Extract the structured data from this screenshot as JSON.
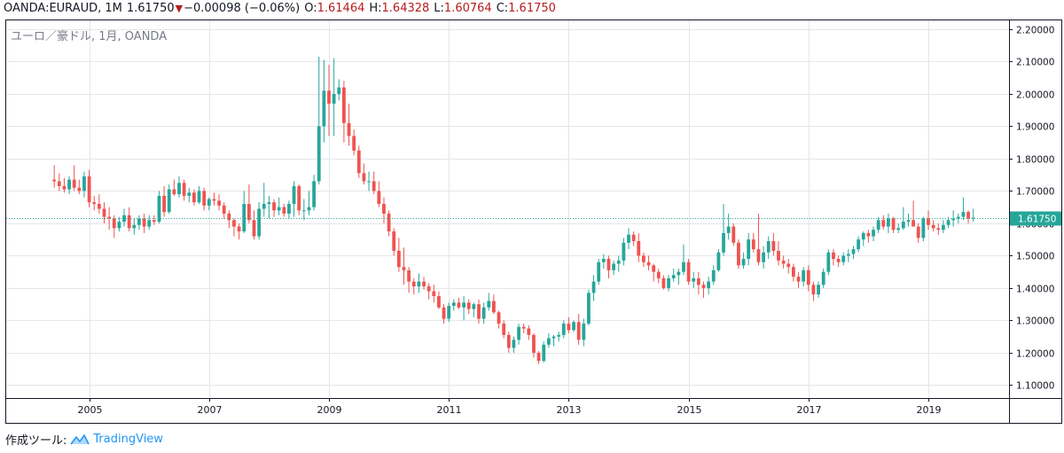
{
  "header": {
    "symbol": "OANDA:EURAUD, 1M",
    "price": "1.61750",
    "change": "−0.00098 (−0.06%)",
    "open_label": "O:",
    "open": "1.61464",
    "high_label": "H:",
    "high": "1.64328",
    "low_label": "L:",
    "low": "1.60764",
    "close_label": "C:",
    "close": "1.61750"
  },
  "subtitle": "ユーロ／豪ドル, 1月, OANDA",
  "footer": {
    "label": "作成ツール:",
    "brand": "TradingView",
    "icon": "tradingview-logo-icon"
  },
  "colors": {
    "up": "#26a69a",
    "down": "#ef5350",
    "grid": "#e6e6ea",
    "price_line": "#26a69a",
    "axis_text": "#131722"
  },
  "chart_data": {
    "type": "candlestick",
    "symbol": "EURAUD",
    "interval": "1M",
    "ylim": [
      1.06,
      2.23
    ],
    "y_ticks": [
      "1.10000",
      "1.20000",
      "1.30000",
      "1.40000",
      "1.50000",
      "1.60000",
      "1.70000",
      "1.80000",
      "1.90000",
      "2.00000",
      "2.10000",
      "2.20000"
    ],
    "x_ticks": [
      "2005",
      "2007",
      "2009",
      "2011",
      "2013",
      "2015",
      "2017",
      "2019"
    ],
    "last_price_label": "1.61750",
    "last_price": 1.6175,
    "grid": true,
    "candles": [
      [
        "2004-06",
        1.735,
        1.78,
        1.71,
        1.73
      ],
      [
        "2004-07",
        1.73,
        1.755,
        1.7,
        1.715
      ],
      [
        "2004-08",
        1.715,
        1.74,
        1.695,
        1.705
      ],
      [
        "2004-09",
        1.705,
        1.745,
        1.69,
        1.735
      ],
      [
        "2004-10",
        1.735,
        1.78,
        1.7,
        1.71
      ],
      [
        "2004-11",
        1.71,
        1.735,
        1.69,
        1.7
      ],
      [
        "2004-12",
        1.7,
        1.76,
        1.68,
        1.745
      ],
      [
        "2005-01",
        1.745,
        1.765,
        1.65,
        1.665
      ],
      [
        "2005-02",
        1.665,
        1.685,
        1.64,
        1.66
      ],
      [
        "2005-03",
        1.66,
        1.69,
        1.63,
        1.645
      ],
      [
        "2005-04",
        1.645,
        1.665,
        1.6,
        1.62
      ],
      [
        "2005-05",
        1.62,
        1.65,
        1.58,
        1.615
      ],
      [
        "2005-06",
        1.615,
        1.625,
        1.555,
        1.585
      ],
      [
        "2005-07",
        1.585,
        1.62,
        1.575,
        1.605
      ],
      [
        "2005-08",
        1.605,
        1.645,
        1.59,
        1.625
      ],
      [
        "2005-09",
        1.625,
        1.65,
        1.575,
        1.585
      ],
      [
        "2005-10",
        1.585,
        1.615,
        1.565,
        1.595
      ],
      [
        "2005-11",
        1.595,
        1.625,
        1.58,
        1.615
      ],
      [
        "2005-12",
        1.615,
        1.63,
        1.57,
        1.59
      ],
      [
        "2006-01",
        1.59,
        1.625,
        1.58,
        1.61
      ],
      [
        "2006-02",
        1.61,
        1.625,
        1.595,
        1.605
      ],
      [
        "2006-03",
        1.605,
        1.7,
        1.6,
        1.685
      ],
      [
        "2006-04",
        1.685,
        1.715,
        1.62,
        1.635
      ],
      [
        "2006-05",
        1.635,
        1.72,
        1.63,
        1.705
      ],
      [
        "2006-06",
        1.705,
        1.735,
        1.685,
        1.69
      ],
      [
        "2006-07",
        1.69,
        1.745,
        1.68,
        1.725
      ],
      [
        "2006-08",
        1.725,
        1.735,
        1.67,
        1.685
      ],
      [
        "2006-09",
        1.685,
        1.71,
        1.665,
        1.695
      ],
      [
        "2006-10",
        1.695,
        1.705,
        1.655,
        1.665
      ],
      [
        "2006-11",
        1.665,
        1.715,
        1.66,
        1.7
      ],
      [
        "2006-12",
        1.7,
        1.71,
        1.64,
        1.655
      ],
      [
        "2007-01",
        1.655,
        1.68,
        1.64,
        1.675
      ],
      [
        "2007-02",
        1.675,
        1.695,
        1.655,
        1.67
      ],
      [
        "2007-03",
        1.67,
        1.69,
        1.64,
        1.655
      ],
      [
        "2007-04",
        1.655,
        1.665,
        1.615,
        1.63
      ],
      [
        "2007-05",
        1.63,
        1.64,
        1.585,
        1.61
      ],
      [
        "2007-06",
        1.61,
        1.615,
        1.56,
        1.59
      ],
      [
        "2007-07",
        1.59,
        1.6,
        1.55,
        1.575
      ],
      [
        "2007-08",
        1.575,
        1.7,
        1.57,
        1.66
      ],
      [
        "2007-09",
        1.66,
        1.72,
        1.6,
        1.61
      ],
      [
        "2007-10",
        1.61,
        1.64,
        1.55,
        1.56
      ],
      [
        "2007-11",
        1.56,
        1.665,
        1.55,
        1.645
      ],
      [
        "2007-12",
        1.645,
        1.725,
        1.62,
        1.66
      ],
      [
        "2008-01",
        1.66,
        1.685,
        1.615,
        1.665
      ],
      [
        "2008-02",
        1.665,
        1.675,
        1.62,
        1.64
      ],
      [
        "2008-03",
        1.64,
        1.68,
        1.625,
        1.65
      ],
      [
        "2008-04",
        1.65,
        1.66,
        1.62,
        1.63
      ],
      [
        "2008-05",
        1.63,
        1.67,
        1.615,
        1.66
      ],
      [
        "2008-06",
        1.66,
        1.73,
        1.62,
        1.715
      ],
      [
        "2008-07",
        1.715,
        1.72,
        1.625,
        1.64
      ],
      [
        "2008-08",
        1.64,
        1.675,
        1.61,
        1.64
      ],
      [
        "2008-09",
        1.64,
        1.7,
        1.625,
        1.65
      ],
      [
        "2008-10",
        1.65,
        1.75,
        1.64,
        1.73
      ],
      [
        "2008-11",
        1.73,
        2.115,
        1.72,
        1.9
      ],
      [
        "2008-12",
        1.9,
        2.105,
        1.85,
        2.01
      ],
      [
        "2009-01",
        2.01,
        2.09,
        1.87,
        1.97
      ],
      [
        "2009-02",
        1.97,
        2.11,
        1.87,
        2.0
      ],
      [
        "2009-03",
        2.0,
        2.045,
        1.98,
        2.02
      ],
      [
        "2009-04",
        2.02,
        2.04,
        1.85,
        1.91
      ],
      [
        "2009-05",
        1.91,
        1.97,
        1.84,
        1.87
      ],
      [
        "2009-06",
        1.87,
        1.89,
        1.81,
        1.825
      ],
      [
        "2009-07",
        1.825,
        1.84,
        1.74,
        1.755
      ],
      [
        "2009-08",
        1.755,
        1.785,
        1.72,
        1.73
      ],
      [
        "2009-09",
        1.73,
        1.76,
        1.7,
        1.73
      ],
      [
        "2009-10",
        1.73,
        1.76,
        1.69,
        1.7
      ],
      [
        "2009-11",
        1.7,
        1.73,
        1.65,
        1.66
      ],
      [
        "2009-12",
        1.66,
        1.68,
        1.6,
        1.63
      ],
      [
        "2010-01",
        1.63,
        1.64,
        1.56,
        1.575
      ],
      [
        "2010-02",
        1.575,
        1.585,
        1.5,
        1.515
      ],
      [
        "2010-03",
        1.515,
        1.555,
        1.45,
        1.465
      ],
      [
        "2010-04",
        1.465,
        1.525,
        1.41,
        1.455
      ],
      [
        "2010-05",
        1.455,
        1.465,
        1.385,
        1.42
      ],
      [
        "2010-06",
        1.42,
        1.43,
        1.38,
        1.405
      ],
      [
        "2010-07",
        1.405,
        1.445,
        1.385,
        1.42
      ],
      [
        "2010-08",
        1.42,
        1.435,
        1.395,
        1.405
      ],
      [
        "2010-09",
        1.405,
        1.415,
        1.365,
        1.39
      ],
      [
        "2010-10",
        1.39,
        1.41,
        1.355,
        1.375
      ],
      [
        "2010-11",
        1.375,
        1.39,
        1.335,
        1.34
      ],
      [
        "2010-12",
        1.34,
        1.35,
        1.29,
        1.305
      ],
      [
        "2011-01",
        1.305,
        1.355,
        1.295,
        1.345
      ],
      [
        "2011-02",
        1.345,
        1.365,
        1.33,
        1.355
      ],
      [
        "2011-03",
        1.355,
        1.37,
        1.335,
        1.34
      ],
      [
        "2011-04",
        1.34,
        1.375,
        1.3,
        1.355
      ],
      [
        "2011-05",
        1.355,
        1.365,
        1.32,
        1.335
      ],
      [
        "2011-06",
        1.335,
        1.355,
        1.31,
        1.35
      ],
      [
        "2011-07",
        1.35,
        1.365,
        1.29,
        1.305
      ],
      [
        "2011-08",
        1.305,
        1.355,
        1.29,
        1.34
      ],
      [
        "2011-09",
        1.34,
        1.385,
        1.33,
        1.36
      ],
      [
        "2011-10",
        1.36,
        1.38,
        1.32,
        1.325
      ],
      [
        "2011-11",
        1.325,
        1.33,
        1.275,
        1.29
      ],
      [
        "2011-12",
        1.29,
        1.3,
        1.245,
        1.255
      ],
      [
        "2012-01",
        1.255,
        1.265,
        1.2,
        1.215
      ],
      [
        "2012-02",
        1.215,
        1.25,
        1.2,
        1.24
      ],
      [
        "2012-03",
        1.24,
        1.29,
        1.225,
        1.28
      ],
      [
        "2012-04",
        1.28,
        1.29,
        1.26,
        1.275
      ],
      [
        "2012-05",
        1.275,
        1.285,
        1.24,
        1.255
      ],
      [
        "2012-06",
        1.255,
        1.26,
        1.185,
        1.2
      ],
      [
        "2012-07",
        1.2,
        1.205,
        1.165,
        1.175
      ],
      [
        "2012-08",
        1.175,
        1.235,
        1.17,
        1.225
      ],
      [
        "2012-09",
        1.225,
        1.26,
        1.215,
        1.245
      ],
      [
        "2012-10",
        1.245,
        1.255,
        1.22,
        1.25
      ],
      [
        "2012-11",
        1.25,
        1.265,
        1.235,
        1.255
      ],
      [
        "2012-12",
        1.255,
        1.3,
        1.245,
        1.29
      ],
      [
        "2013-01",
        1.29,
        1.31,
        1.26,
        1.27
      ],
      [
        "2013-02",
        1.27,
        1.3,
        1.265,
        1.295
      ],
      [
        "2013-03",
        1.295,
        1.32,
        1.225,
        1.24
      ],
      [
        "2013-04",
        1.24,
        1.305,
        1.22,
        1.29
      ],
      [
        "2013-05",
        1.29,
        1.395,
        1.285,
        1.385
      ],
      [
        "2013-06",
        1.385,
        1.44,
        1.36,
        1.42
      ],
      [
        "2013-07",
        1.42,
        1.49,
        1.41,
        1.48
      ],
      [
        "2013-08",
        1.48,
        1.505,
        1.46,
        1.49
      ],
      [
        "2013-09",
        1.49,
        1.5,
        1.43,
        1.455
      ],
      [
        "2013-10",
        1.455,
        1.485,
        1.44,
        1.475
      ],
      [
        "2013-11",
        1.475,
        1.5,
        1.45,
        1.485
      ],
      [
        "2013-12",
        1.485,
        1.555,
        1.47,
        1.54
      ],
      [
        "2014-01",
        1.54,
        1.585,
        1.52,
        1.565
      ],
      [
        "2014-02",
        1.565,
        1.575,
        1.53,
        1.545
      ],
      [
        "2014-03",
        1.545,
        1.57,
        1.48,
        1.5
      ],
      [
        "2014-04",
        1.5,
        1.51,
        1.465,
        1.48
      ],
      [
        "2014-05",
        1.48,
        1.5,
        1.455,
        1.47
      ],
      [
        "2014-06",
        1.47,
        1.475,
        1.42,
        1.45
      ],
      [
        "2014-07",
        1.45,
        1.46,
        1.415,
        1.43
      ],
      [
        "2014-08",
        1.43,
        1.44,
        1.395,
        1.4
      ],
      [
        "2014-09",
        1.4,
        1.44,
        1.39,
        1.43
      ],
      [
        "2014-10",
        1.43,
        1.46,
        1.42,
        1.44
      ],
      [
        "2014-11",
        1.44,
        1.46,
        1.41,
        1.45
      ],
      [
        "2014-12",
        1.45,
        1.535,
        1.44,
        1.48
      ],
      [
        "2015-01",
        1.48,
        1.49,
        1.41,
        1.42
      ],
      [
        "2015-02",
        1.42,
        1.45,
        1.4,
        1.43
      ],
      [
        "2015-03",
        1.43,
        1.45,
        1.38,
        1.41
      ],
      [
        "2015-04",
        1.41,
        1.42,
        1.37,
        1.4
      ],
      [
        "2015-05",
        1.4,
        1.435,
        1.38,
        1.42
      ],
      [
        "2015-06",
        1.42,
        1.47,
        1.41,
        1.455
      ],
      [
        "2015-07",
        1.455,
        1.52,
        1.45,
        1.51
      ],
      [
        "2015-08",
        1.51,
        1.66,
        1.5,
        1.57
      ],
      [
        "2015-09",
        1.57,
        1.63,
        1.55,
        1.59
      ],
      [
        "2015-10",
        1.59,
        1.6,
        1.53,
        1.54
      ],
      [
        "2015-11",
        1.54,
        1.55,
        1.46,
        1.47
      ],
      [
        "2015-12",
        1.47,
        1.51,
        1.46,
        1.49
      ],
      [
        "2016-01",
        1.49,
        1.57,
        1.47,
        1.55
      ],
      [
        "2016-02",
        1.55,
        1.57,
        1.51,
        1.52
      ],
      [
        "2016-03",
        1.52,
        1.63,
        1.47,
        1.48
      ],
      [
        "2016-04",
        1.48,
        1.53,
        1.46,
        1.51
      ],
      [
        "2016-05",
        1.51,
        1.56,
        1.49,
        1.545
      ],
      [
        "2016-06",
        1.545,
        1.57,
        1.5,
        1.515
      ],
      [
        "2016-07",
        1.515,
        1.545,
        1.47,
        1.485
      ],
      [
        "2016-08",
        1.485,
        1.5,
        1.46,
        1.475
      ],
      [
        "2016-09",
        1.475,
        1.49,
        1.445,
        1.465
      ],
      [
        "2016-10",
        1.465,
        1.475,
        1.42,
        1.435
      ],
      [
        "2016-11",
        1.435,
        1.45,
        1.4,
        1.42
      ],
      [
        "2016-12",
        1.42,
        1.465,
        1.405,
        1.455
      ],
      [
        "2017-01",
        1.455,
        1.47,
        1.39,
        1.41
      ],
      [
        "2017-02",
        1.41,
        1.42,
        1.36,
        1.38
      ],
      [
        "2017-03",
        1.38,
        1.42,
        1.37,
        1.41
      ],
      [
        "2017-04",
        1.41,
        1.46,
        1.4,
        1.45
      ],
      [
        "2017-05",
        1.45,
        1.52,
        1.44,
        1.51
      ],
      [
        "2017-06",
        1.51,
        1.52,
        1.47,
        1.49
      ],
      [
        "2017-07",
        1.49,
        1.5,
        1.465,
        1.48
      ],
      [
        "2017-08",
        1.48,
        1.51,
        1.47,
        1.5
      ],
      [
        "2017-09",
        1.5,
        1.52,
        1.48,
        1.505
      ],
      [
        "2017-10",
        1.505,
        1.53,
        1.49,
        1.52
      ],
      [
        "2017-11",
        1.52,
        1.56,
        1.51,
        1.55
      ],
      [
        "2017-12",
        1.55,
        1.575,
        1.53,
        1.57
      ],
      [
        "2018-01",
        1.57,
        1.58,
        1.54,
        1.56
      ],
      [
        "2018-02",
        1.56,
        1.59,
        1.545,
        1.58
      ],
      [
        "2018-03",
        1.58,
        1.62,
        1.57,
        1.61
      ],
      [
        "2018-04",
        1.61,
        1.625,
        1.58,
        1.59
      ],
      [
        "2018-05",
        1.59,
        1.63,
        1.57,
        1.615
      ],
      [
        "2018-06",
        1.615,
        1.62,
        1.57,
        1.58
      ],
      [
        "2018-07",
        1.58,
        1.6,
        1.57,
        1.585
      ],
      [
        "2018-08",
        1.585,
        1.65,
        1.58,
        1.605
      ],
      [
        "2018-09",
        1.605,
        1.63,
        1.59,
        1.61
      ],
      [
        "2018-10",
        1.61,
        1.67,
        1.59,
        1.59
      ],
      [
        "2018-11",
        1.59,
        1.6,
        1.54,
        1.555
      ],
      [
        "2018-12",
        1.555,
        1.62,
        1.545,
        1.615
      ],
      [
        "2019-01",
        1.615,
        1.64,
        1.58,
        1.595
      ],
      [
        "2019-02",
        1.595,
        1.61,
        1.575,
        1.585
      ],
      [
        "2019-03",
        1.585,
        1.6,
        1.565,
        1.58
      ],
      [
        "2019-04",
        1.58,
        1.61,
        1.57,
        1.595
      ],
      [
        "2019-05",
        1.595,
        1.62,
        1.585,
        1.61
      ],
      [
        "2019-06",
        1.61,
        1.64,
        1.59,
        1.615
      ],
      [
        "2019-07",
        1.615,
        1.63,
        1.6,
        1.62
      ],
      [
        "2019-08",
        1.62,
        1.68,
        1.61,
        1.635
      ],
      [
        "2019-09",
        1.635,
        1.64,
        1.6,
        1.615
      ],
      [
        "2019-10",
        1.615,
        1.645,
        1.605,
        1.6175
      ]
    ]
  }
}
